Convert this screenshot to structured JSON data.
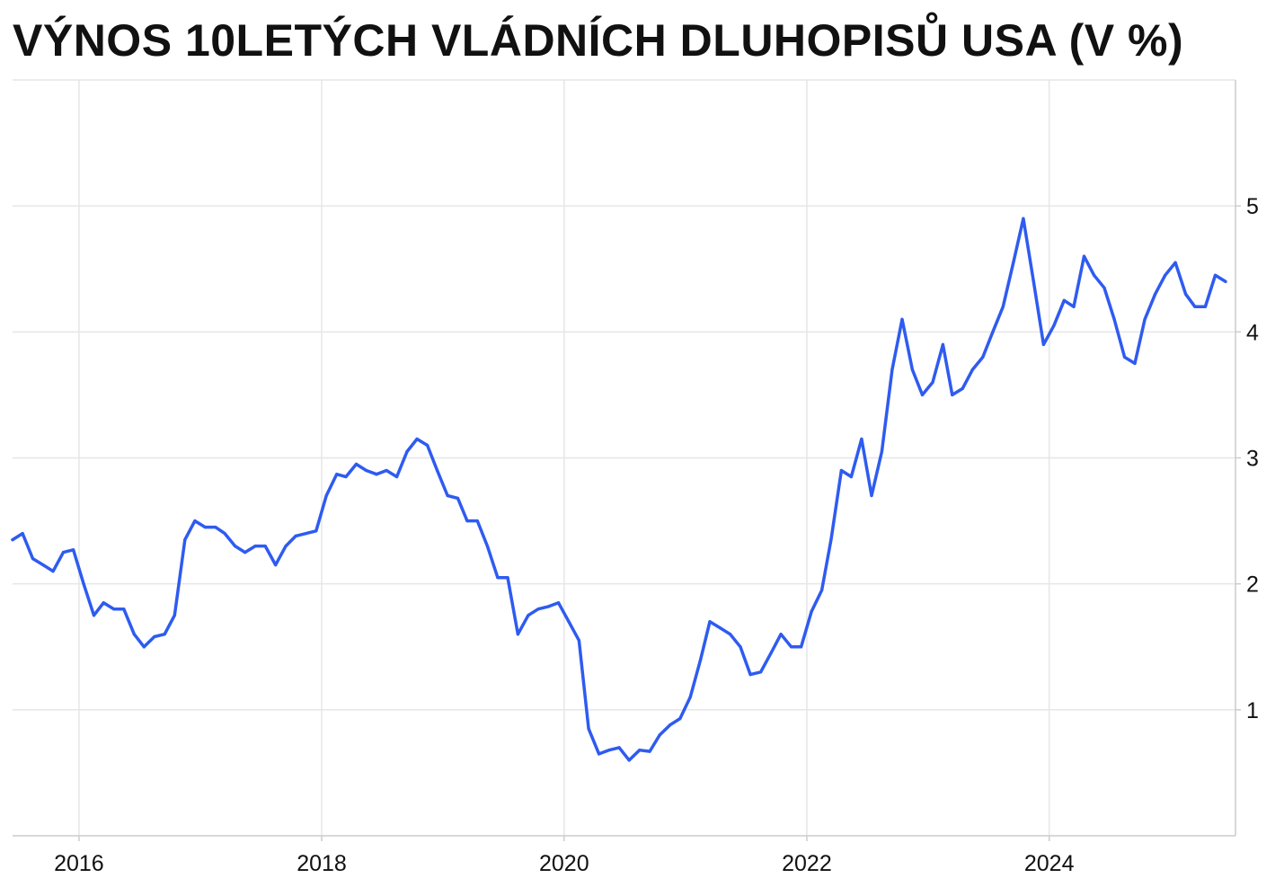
{
  "chart_data": {
    "type": "line",
    "title": "VÝNOS 10LETÝCH VLÁDNÍCH DLUHOPISŮ USA (V %)",
    "xlabel": "",
    "ylabel": "",
    "x_ticks": [
      "2016",
      "2018",
      "2020",
      "2022",
      "2024"
    ],
    "y_ticks": [
      "1",
      "2",
      "3",
      "4",
      "5"
    ],
    "xlim": [
      "2015-06-15",
      "2025-07-15"
    ],
    "ylim": [
      0,
      6
    ],
    "grid": true,
    "line_color": "#2e5bf0",
    "series": [
      {
        "x": [
          "2015-06",
          "2015-07",
          "2015-08",
          "2015-09",
          "2015-10",
          "2015-11",
          "2015-12",
          "2016-01",
          "2016-02",
          "2016-03",
          "2016-04",
          "2016-05",
          "2016-06",
          "2016-07",
          "2016-08",
          "2016-09",
          "2016-10",
          "2016-11",
          "2016-12",
          "2017-01",
          "2017-02",
          "2017-03",
          "2017-04",
          "2017-05",
          "2017-06",
          "2017-07",
          "2017-08",
          "2017-09",
          "2017-10",
          "2017-11",
          "2017-12",
          "2018-01",
          "2018-02",
          "2018-03",
          "2018-04",
          "2018-05",
          "2018-06",
          "2018-07",
          "2018-08",
          "2018-09",
          "2018-10",
          "2018-11",
          "2018-12",
          "2019-01",
          "2019-02",
          "2019-03",
          "2019-04",
          "2019-05",
          "2019-06",
          "2019-07",
          "2019-08",
          "2019-09",
          "2019-10",
          "2019-11",
          "2019-12",
          "2020-01",
          "2020-02",
          "2020-03",
          "2020-04",
          "2020-05",
          "2020-06",
          "2020-07",
          "2020-08",
          "2020-09",
          "2020-10",
          "2020-11",
          "2020-12",
          "2021-01",
          "2021-02",
          "2021-03",
          "2021-04",
          "2021-05",
          "2021-06",
          "2021-07",
          "2021-08",
          "2021-09",
          "2021-10",
          "2021-11",
          "2021-12",
          "2022-01",
          "2022-02",
          "2022-03",
          "2022-04",
          "2022-05",
          "2022-06",
          "2022-07",
          "2022-08",
          "2022-09",
          "2022-10",
          "2022-11",
          "2022-12",
          "2023-01",
          "2023-02",
          "2023-03",
          "2023-04",
          "2023-05",
          "2023-06",
          "2023-07",
          "2023-08",
          "2023-09",
          "2023-10",
          "2023-11",
          "2023-12",
          "2024-01",
          "2024-02",
          "2024-03",
          "2024-04",
          "2024-05",
          "2024-06",
          "2024-07",
          "2024-08",
          "2024-09",
          "2024-10",
          "2024-11",
          "2024-12",
          "2025-01",
          "2025-02",
          "2025-03",
          "2025-04",
          "2025-05",
          "2025-06"
        ],
        "y": [
          2.35,
          2.4,
          2.2,
          2.15,
          2.1,
          2.25,
          2.27,
          2.0,
          1.75,
          1.85,
          1.8,
          1.8,
          1.6,
          1.5,
          1.58,
          1.6,
          1.75,
          2.35,
          2.5,
          2.45,
          2.45,
          2.4,
          2.3,
          2.25,
          2.3,
          2.3,
          2.15,
          2.3,
          2.38,
          2.4,
          2.42,
          2.7,
          2.87,
          2.85,
          2.95,
          2.9,
          2.87,
          2.9,
          2.85,
          3.05,
          3.15,
          3.1,
          2.9,
          2.7,
          2.68,
          2.5,
          2.5,
          2.3,
          2.05,
          2.05,
          1.6,
          1.75,
          1.8,
          1.82,
          1.85,
          1.7,
          1.55,
          0.85,
          0.65,
          0.68,
          0.7,
          0.6,
          0.68,
          0.67,
          0.8,
          0.88,
          0.93,
          1.1,
          1.4,
          1.7,
          1.65,
          1.6,
          1.5,
          1.28,
          1.3,
          1.45,
          1.6,
          1.5,
          1.5,
          1.78,
          1.95,
          2.35,
          2.9,
          2.85,
          3.15,
          2.7,
          3.05,
          3.7,
          4.1,
          3.7,
          3.5,
          3.6,
          3.9,
          3.5,
          3.55,
          3.7,
          3.8,
          4.0,
          4.2,
          4.55,
          4.9,
          4.4,
          3.9,
          4.05,
          4.25,
          4.2,
          4.6,
          4.45,
          4.35,
          4.1,
          3.8,
          3.75,
          4.1,
          4.3,
          4.45,
          4.55,
          4.3,
          4.2,
          4.2,
          4.45,
          4.4
        ]
      }
    ]
  }
}
